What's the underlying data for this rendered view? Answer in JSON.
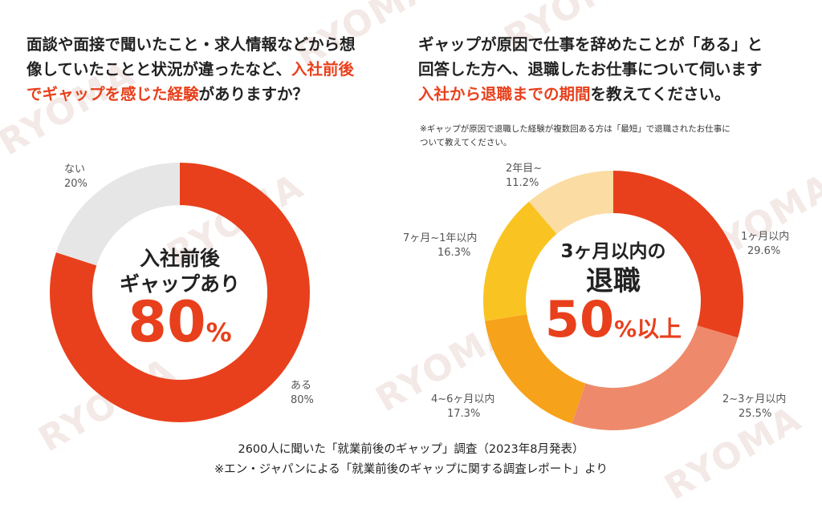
{
  "left": {
    "question": {
      "line1": "面談や面接で聞いたこと・求人情報などから想",
      "line2_pre": "像していたことと状況が違ったなど、",
      "line2_hl": "入社前後",
      "line3_hl": "でギャップを感じた経験",
      "line3_post": "がありますか？"
    },
    "center": {
      "line1": "入社前後",
      "line2": "ギャップあり",
      "value": "80",
      "unit": "%"
    }
  },
  "right": {
    "question": {
      "line1": "ギャップが原因で仕事を辞めたことが「ある」と",
      "line2": "回答した方へ、退職したお仕事について伺います",
      "line3_hl": "入社から退職までの期間",
      "line3_post": "を教えてください。"
    },
    "note": {
      "line1": "※ギャップが原因で退職した経験が複数回ある方は「最短」で退職されたお仕事に",
      "line2": "ついて教えてください。"
    },
    "center": {
      "line1": "3ヶ月以内の",
      "line2": "退職",
      "value": "50",
      "unit": "%以上"
    }
  },
  "chart_data": [
    {
      "type": "pie",
      "subtype": "donut",
      "categories": [
        "ある",
        "ない"
      ],
      "values": [
        80,
        20
      ],
      "labels": [
        "80%",
        "20%"
      ],
      "colors": [
        "#e8401c",
        "#e6e6e6"
      ]
    },
    {
      "type": "pie",
      "subtype": "donut",
      "categories": [
        "1ヶ月以内",
        "2~3ヶ月以内",
        "4~6ヶ月以内",
        "7ヶ月~1年以内",
        "2年目~"
      ],
      "values": [
        29.6,
        25.5,
        17.3,
        16.3,
        11.2
      ],
      "labels": [
        "29.6%",
        "25.5%",
        "17.3%",
        "16.3%",
        "11.2%"
      ],
      "colors": [
        "#e8401c",
        "#ee8a6b",
        "#f7a21b",
        "#f9c422",
        "#fbdca2"
      ]
    }
  ],
  "footer": {
    "line1": "2600人に聞いた「就業前後のギャップ」調査（2023年8月発表）",
    "line2": "※エン・ジャパンによる「就業前後のギャップに関する調査レポート」より"
  },
  "watermark": "RYOMA"
}
